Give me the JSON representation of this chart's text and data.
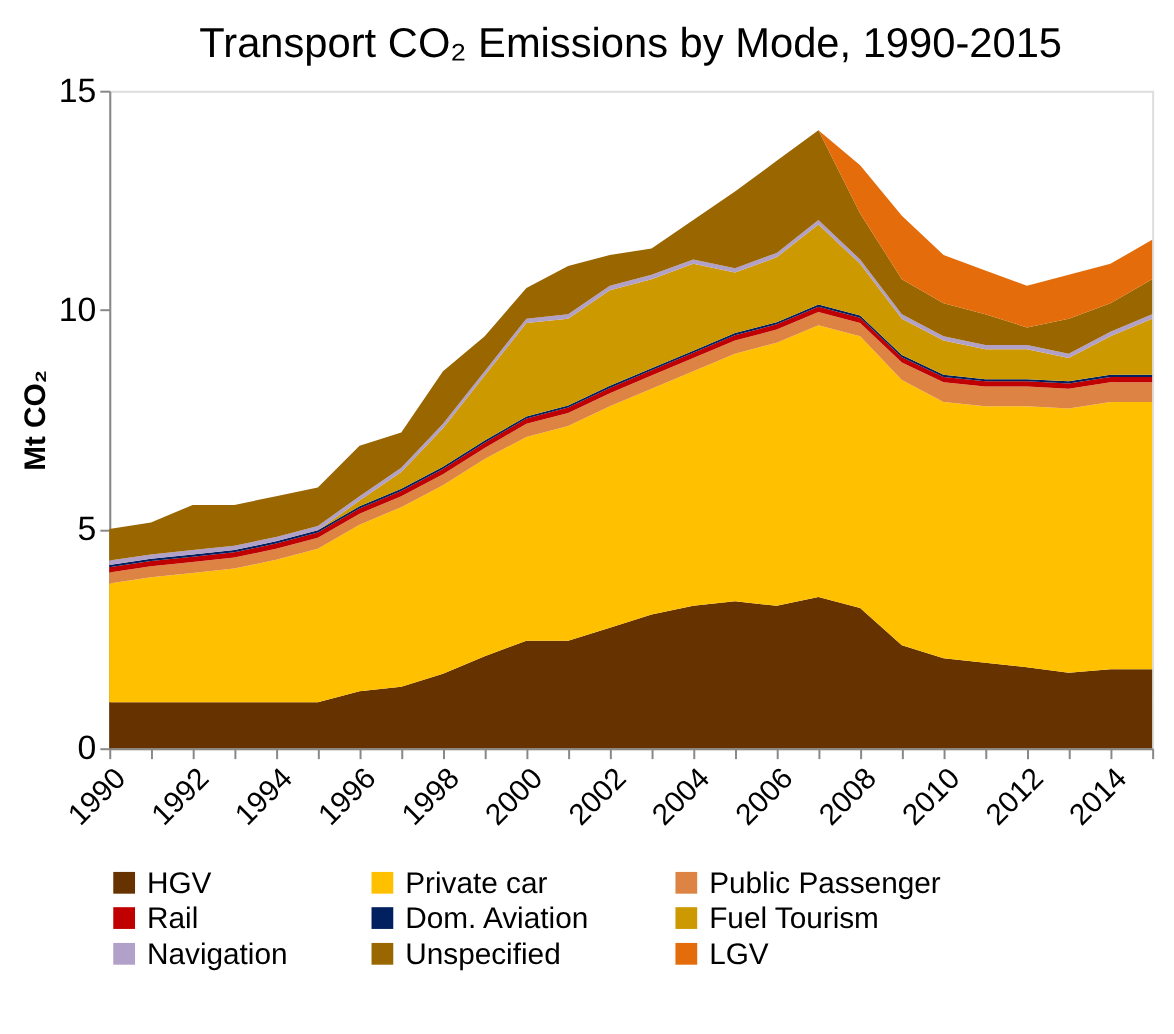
{
  "chart_data": {
    "type": "area",
    "stacked": true,
    "title": "Transport CO₂ Emissions by Mode, 1990-2015",
    "ylabel": "Mt CO₂",
    "x": [
      1990,
      1991,
      1992,
      1993,
      1994,
      1995,
      1996,
      1997,
      1998,
      1999,
      2000,
      2001,
      2002,
      2003,
      2004,
      2005,
      2006,
      2007,
      2008,
      2009,
      2010,
      2011,
      2012,
      2013,
      2014,
      2015
    ],
    "series": [
      {
        "name": "HGV",
        "color": "#663300",
        "values": [
          1.05,
          1.05,
          1.05,
          1.05,
          1.05,
          1.05,
          1.3,
          1.4,
          1.7,
          2.1,
          2.45,
          2.45,
          2.75,
          3.05,
          3.25,
          3.35,
          3.25,
          3.45,
          3.2,
          2.35,
          2.05,
          1.95,
          1.85,
          1.72,
          1.8,
          1.8
        ]
      },
      {
        "name": "Private car",
        "color": "#ffc000",
        "values": [
          2.71,
          2.85,
          2.95,
          3.05,
          3.25,
          3.5,
          3.8,
          4.1,
          4.3,
          4.5,
          4.65,
          4.9,
          5.05,
          5.15,
          5.35,
          5.65,
          6.0,
          6.2,
          6.2,
          6.05,
          5.85,
          5.85,
          5.95,
          6.03,
          6.1,
          6.1
        ]
      },
      {
        "name": "Public Passenger",
        "color": "#dd8444",
        "values": [
          0.25,
          0.25,
          0.25,
          0.25,
          0.25,
          0.25,
          0.25,
          0.25,
          0.25,
          0.25,
          0.3,
          0.3,
          0.3,
          0.3,
          0.3,
          0.3,
          0.3,
          0.3,
          0.3,
          0.4,
          0.45,
          0.45,
          0.45,
          0.45,
          0.45,
          0.45
        ]
      },
      {
        "name": "Rail",
        "color": "#c00000",
        "values": [
          0.12,
          0.12,
          0.12,
          0.12,
          0.12,
          0.12,
          0.12,
          0.12,
          0.12,
          0.12,
          0.12,
          0.12,
          0.12,
          0.12,
          0.12,
          0.12,
          0.12,
          0.12,
          0.12,
          0.12,
          0.12,
          0.12,
          0.12,
          0.12,
          0.12,
          0.12
        ]
      },
      {
        "name": "Dom. Aviation",
        "color": "#002060",
        "values": [
          0.05,
          0.05,
          0.05,
          0.05,
          0.05,
          0.05,
          0.05,
          0.05,
          0.05,
          0.05,
          0.05,
          0.05,
          0.05,
          0.05,
          0.05,
          0.05,
          0.05,
          0.05,
          0.05,
          0.05,
          0.05,
          0.05,
          0.05,
          0.05,
          0.05,
          0.05
        ]
      },
      {
        "name": "Fuel Tourism",
        "color": "#cc9900",
        "values": [
          0,
          0,
          0,
          0,
          0,
          0,
          0.13,
          0.38,
          0.88,
          1.48,
          2.13,
          1.98,
          2.18,
          2.03,
          1.98,
          1.38,
          1.48,
          1.83,
          1.18,
          0.83,
          0.78,
          0.68,
          0.68,
          0.53,
          0.88,
          1.28
        ]
      },
      {
        "name": "Navigation",
        "color": "#b1a0c7",
        "values": [
          0.1,
          0.1,
          0.1,
          0.1,
          0.1,
          0.1,
          0.1,
          0.1,
          0.1,
          0.1,
          0.1,
          0.1,
          0.1,
          0.1,
          0.1,
          0.1,
          0.1,
          0.1,
          0.1,
          0.1,
          0.1,
          0.1,
          0.1,
          0.1,
          0.1,
          0.1
        ]
      },
      {
        "name": "Unspecified",
        "color": "#996600",
        "values": [
          0.72,
          0.73,
          1.03,
          0.93,
          0.93,
          0.88,
          1.15,
          0.8,
          1.2,
          0.8,
          0.7,
          1.1,
          0.7,
          0.6,
          0.9,
          1.75,
          2.1,
          2.05,
          1.05,
          0.8,
          0.75,
          0.7,
          0.4,
          0.8,
          0.65,
          0.8
        ]
      },
      {
        "name": "LGV",
        "color": "#e46c0a",
        "values": [
          null,
          null,
          null,
          null,
          null,
          null,
          null,
          null,
          null,
          null,
          null,
          null,
          null,
          null,
          null,
          null,
          null,
          0,
          1.1,
          1.45,
          1.1,
          1.0,
          0.95,
          1.0,
          0.9,
          0.9
        ]
      }
    ],
    "xlim": [
      1990,
      2015
    ],
    "xticks": [
      1990,
      {
        "value": 1991,
        "label": null
      },
      1992,
      {
        "value": 1993,
        "label": null
      },
      1994,
      {
        "value": 1995,
        "label": null
      },
      1996,
      {
        "value": 1997,
        "label": null
      },
      1998,
      {
        "value": 1999,
        "label": null
      },
      2000,
      {
        "value": 2001,
        "label": null
      },
      2002,
      {
        "value": 2003,
        "label": null
      },
      2004,
      {
        "value": 2005,
        "label": null
      },
      2006,
      {
        "value": 2007,
        "label": null
      },
      2008,
      {
        "value": 2009,
        "label": null
      },
      2010,
      {
        "value": 2011,
        "label": null
      },
      2012,
      {
        "value": 2013,
        "label": null
      },
      2014,
      {
        "value": 2015,
        "label": null
      }
    ],
    "ylim": [
      0,
      15
    ],
    "yticks": [
      0,
      5,
      10,
      15
    ],
    "grid": false,
    "legend": "bottom"
  }
}
